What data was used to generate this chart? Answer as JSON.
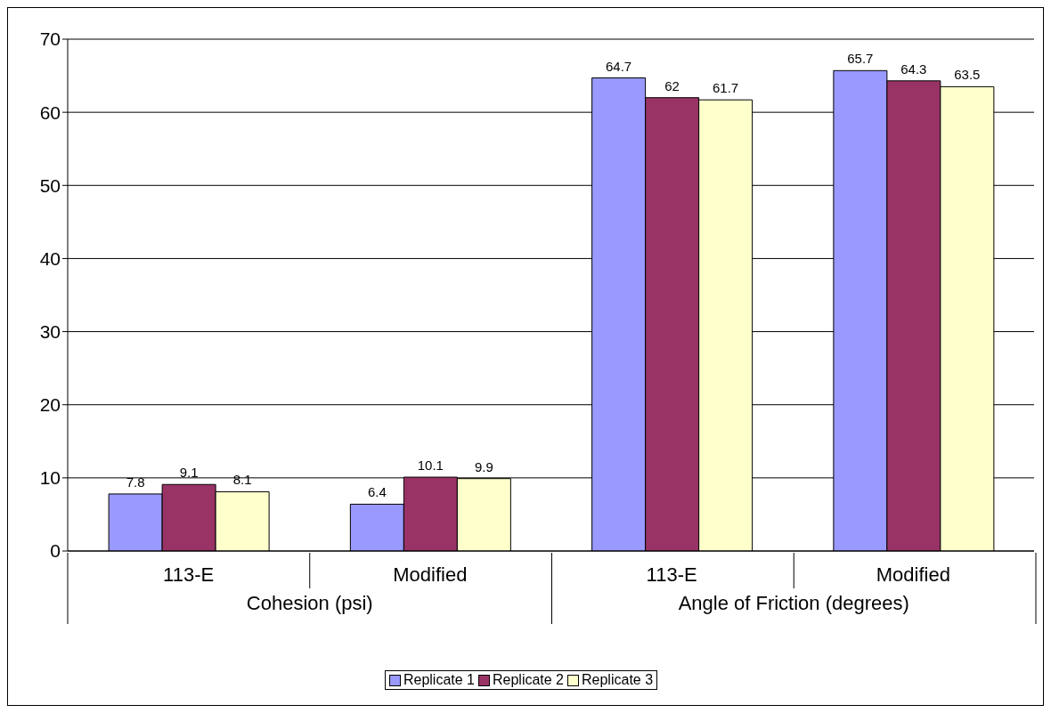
{
  "chart_data": {
    "type": "bar",
    "categories": [
      "113-E",
      "Modified",
      "113-E",
      "Modified"
    ],
    "series": [
      {
        "name": "Replicate 1",
        "color": "#9999ff",
        "values": [
          7.8,
          6.4,
          64.7,
          65.7
        ]
      },
      {
        "name": "Replicate 2",
        "color": "#993366",
        "values": [
          9.1,
          10.1,
          62,
          64.3
        ]
      },
      {
        "name": "Replicate 3",
        "color": "#ffffcc",
        "values": [
          8.1,
          9.9,
          61.7,
          63.5
        ]
      }
    ],
    "annotations": [
      "Cohesion (psi)",
      "Angle of Friction (degrees)"
    ],
    "ylim": [
      0,
      70
    ],
    "yticks": [
      0,
      10,
      20,
      30,
      40,
      50,
      60,
      70
    ],
    "grid": "y",
    "legend": "bottom",
    "data_labels": true
  }
}
